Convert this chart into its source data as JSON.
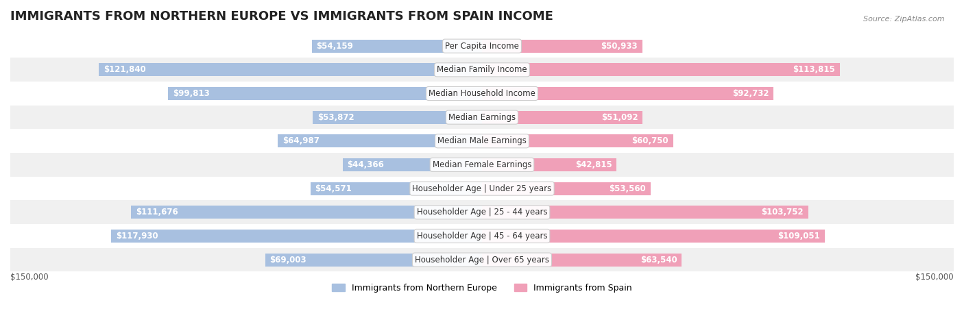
{
  "title": "IMMIGRANTS FROM NORTHERN EUROPE VS IMMIGRANTS FROM SPAIN INCOME",
  "source": "Source: ZipAtlas.com",
  "categories": [
    "Per Capita Income",
    "Median Family Income",
    "Median Household Income",
    "Median Earnings",
    "Median Male Earnings",
    "Median Female Earnings",
    "Householder Age | Under 25 years",
    "Householder Age | 25 - 44 years",
    "Householder Age | 45 - 64 years",
    "Householder Age | Over 65 years"
  ],
  "left_values": [
    54159,
    121840,
    99813,
    53872,
    64987,
    44366,
    54571,
    111676,
    117930,
    69003
  ],
  "right_values": [
    50933,
    113815,
    92732,
    51092,
    60750,
    42815,
    53560,
    103752,
    109051,
    63540
  ],
  "left_labels": [
    "$54,159",
    "$121,840",
    "$99,813",
    "$53,872",
    "$64,987",
    "$44,366",
    "$54,571",
    "$111,676",
    "$117,930",
    "$69,003"
  ],
  "right_labels": [
    "$50,933",
    "$113,815",
    "$92,732",
    "$51,092",
    "$60,750",
    "$42,815",
    "$53,560",
    "$103,752",
    "$109,051",
    "$63,540"
  ],
  "max_value": 150000,
  "left_color": "#a8c0e0",
  "right_color": "#f0a0b8",
  "left_color_dark": "#7baad0",
  "right_color_dark": "#e87898",
  "left_legend": "Immigrants from Northern Europe",
  "right_legend": "Immigrants from Spain",
  "bar_height": 0.55,
  "row_bg_colors": [
    "#f0f0f0",
    "#ffffff"
  ],
  "xlabel_left": "$150,000",
  "xlabel_right": "$150,000",
  "title_fontsize": 13,
  "label_fontsize": 8.5,
  "category_fontsize": 8.5
}
